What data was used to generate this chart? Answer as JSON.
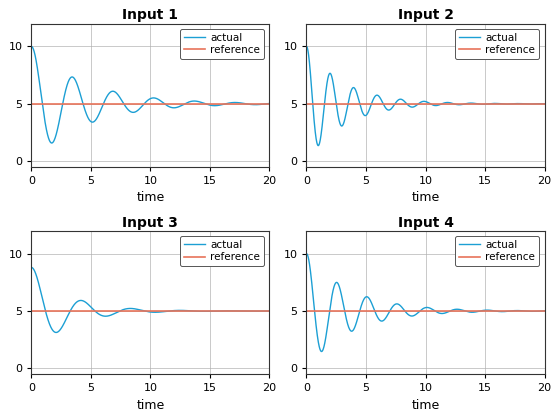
{
  "titles": [
    "Input 1",
    "Input 2",
    "Input 3",
    "Input 4"
  ],
  "xlabel": "time",
  "xlim": [
    0,
    20
  ],
  "ylim": [
    -0.5,
    12
  ],
  "yticks": [
    0,
    5,
    10
  ],
  "xticks": [
    0,
    5,
    10,
    15,
    20
  ],
  "reference_value": 5,
  "reference_color": "#E8735A",
  "actual_color": "#1C9FD4",
  "legend_labels": [
    "actual",
    "reference"
  ],
  "figsize": [
    5.6,
    4.2
  ],
  "dpi": 100,
  "background_color": "#ffffff",
  "grid_color": "#b0b0b0",
  "signals": [
    {
      "wn": 1.85,
      "zeta": 0.12,
      "scale": 5.0
    },
    {
      "wn": 3.2,
      "zeta": 0.1,
      "scale": 5.0
    },
    {
      "wn": 1.55,
      "zeta": 0.22,
      "scale": 3.8
    },
    {
      "wn": 2.5,
      "zeta": 0.11,
      "scale": 5.0
    }
  ]
}
